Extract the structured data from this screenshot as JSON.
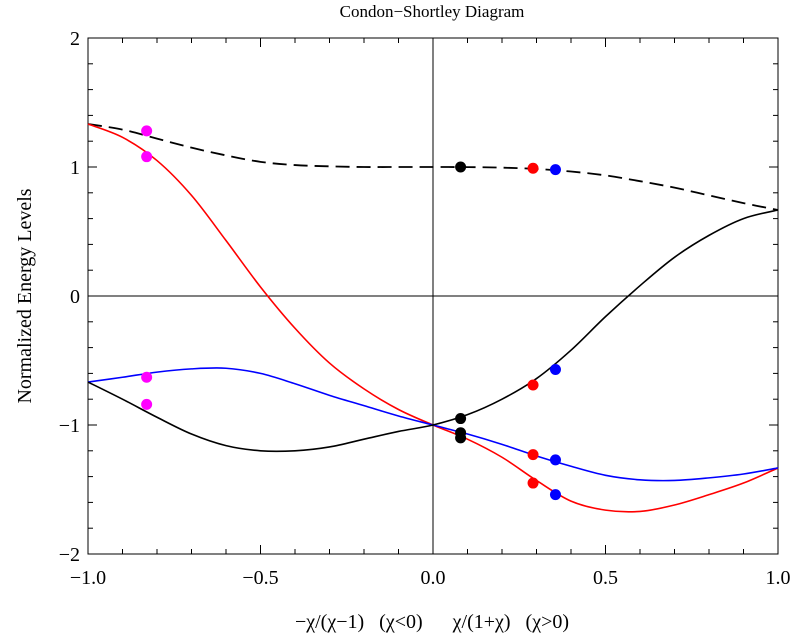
{
  "chart_data": {
    "type": "line",
    "title": "Condon−Shortley Diagram",
    "xlabel": "−χ/(χ−1)   (χ<0)      χ/(1+χ)   (χ>0)",
    "ylabel": "Normalized Energy Levels",
    "xlim": [
      -1.0,
      1.0
    ],
    "ylim": [
      -2,
      2
    ],
    "xticks": [
      "−1.0",
      "−0.5",
      "0.0",
      "0.5",
      "1.0"
    ],
    "yticks": [
      "−2",
      "−1",
      "0",
      "1",
      "2"
    ],
    "grid": false,
    "colors": {
      "black": "#000000",
      "red": "#ff0000",
      "blue": "#0000ff",
      "magenta": "#ff00ff"
    },
    "series": [
      {
        "style": "dashed",
        "color": "#000000",
        "x": [
          -1.0,
          -0.9,
          -0.8,
          -0.7,
          -0.6,
          -0.5,
          -0.4,
          -0.3,
          -0.2,
          -0.1,
          0.0,
          0.1,
          0.2,
          0.3,
          0.4,
          0.5,
          0.6,
          0.7,
          0.8,
          0.9,
          1.0
        ],
        "y": [
          1.333,
          1.29,
          1.22,
          1.15,
          1.09,
          1.04,
          1.015,
          1.005,
          1.0,
          1.0,
          1.0,
          0.999,
          0.995,
          0.985,
          0.965,
          0.935,
          0.89,
          0.84,
          0.78,
          0.72,
          0.667
        ]
      },
      {
        "style": "solid",
        "color": "#ff0000",
        "x": [
          -1.0,
          -0.9,
          -0.8,
          -0.7,
          -0.6,
          -0.5,
          -0.4,
          -0.3,
          -0.2,
          -0.1,
          0.0,
          0.1,
          0.2,
          0.3,
          0.4,
          0.5,
          0.6,
          0.7,
          0.8,
          0.9,
          1.0
        ],
        "y": [
          1.333,
          1.23,
          1.05,
          0.78,
          0.43,
          0.07,
          -0.25,
          -0.52,
          -0.72,
          -0.88,
          -1.0,
          -1.11,
          -1.25,
          -1.43,
          -1.59,
          -1.66,
          -1.67,
          -1.62,
          -1.54,
          -1.45,
          -1.333
        ]
      },
      {
        "style": "solid",
        "color": "#0000ff",
        "x": [
          -1.0,
          -0.9,
          -0.8,
          -0.7,
          -0.6,
          -0.5,
          -0.4,
          -0.3,
          -0.2,
          -0.1,
          0.0,
          0.1,
          0.2,
          0.3,
          0.4,
          0.5,
          0.6,
          0.7,
          0.8,
          0.9,
          1.0
        ],
        "y": [
          -0.667,
          -0.63,
          -0.59,
          -0.565,
          -0.56,
          -0.6,
          -0.68,
          -0.77,
          -0.85,
          -0.93,
          -1.0,
          -1.07,
          -1.15,
          -1.24,
          -1.32,
          -1.39,
          -1.425,
          -1.43,
          -1.41,
          -1.38,
          -1.333
        ]
      },
      {
        "style": "solid",
        "color": "#000000",
        "x": [
          -1.0,
          -0.9,
          -0.8,
          -0.7,
          -0.6,
          -0.5,
          -0.4,
          -0.3,
          -0.2,
          -0.1,
          0.0,
          0.1,
          0.2,
          0.3,
          0.4,
          0.5,
          0.6,
          0.7,
          0.8,
          0.9,
          1.0
        ],
        "y": [
          -0.667,
          -0.8,
          -0.94,
          -1.07,
          -1.16,
          -1.2,
          -1.2,
          -1.17,
          -1.11,
          -1.05,
          -1.0,
          -0.92,
          -0.8,
          -0.64,
          -0.42,
          -0.16,
          0.08,
          0.3,
          0.47,
          0.6,
          0.667
        ]
      }
    ],
    "points": [
      {
        "x": -0.83,
        "y": 1.28,
        "color": "#ff00ff"
      },
      {
        "x": -0.83,
        "y": 1.08,
        "color": "#ff00ff"
      },
      {
        "x": -0.83,
        "y": -0.63,
        "color": "#ff00ff"
      },
      {
        "x": -0.83,
        "y": -0.84,
        "color": "#ff00ff"
      },
      {
        "x": 0.08,
        "y": 1.0,
        "color": "#000000"
      },
      {
        "x": 0.08,
        "y": -0.95,
        "color": "#000000"
      },
      {
        "x": 0.08,
        "y": -1.06,
        "color": "#000000"
      },
      {
        "x": 0.08,
        "y": -1.1,
        "color": "#000000"
      },
      {
        "x": 0.29,
        "y": 0.99,
        "color": "#ff0000"
      },
      {
        "x": 0.29,
        "y": -0.69,
        "color": "#ff0000"
      },
      {
        "x": 0.29,
        "y": -1.23,
        "color": "#ff0000"
      },
      {
        "x": 0.29,
        "y": -1.45,
        "color": "#ff0000"
      },
      {
        "x": 0.355,
        "y": 0.98,
        "color": "#0000ff"
      },
      {
        "x": 0.355,
        "y": -0.57,
        "color": "#0000ff"
      },
      {
        "x": 0.355,
        "y": -1.27,
        "color": "#0000ff"
      },
      {
        "x": 0.355,
        "y": -1.54,
        "color": "#0000ff"
      }
    ]
  }
}
